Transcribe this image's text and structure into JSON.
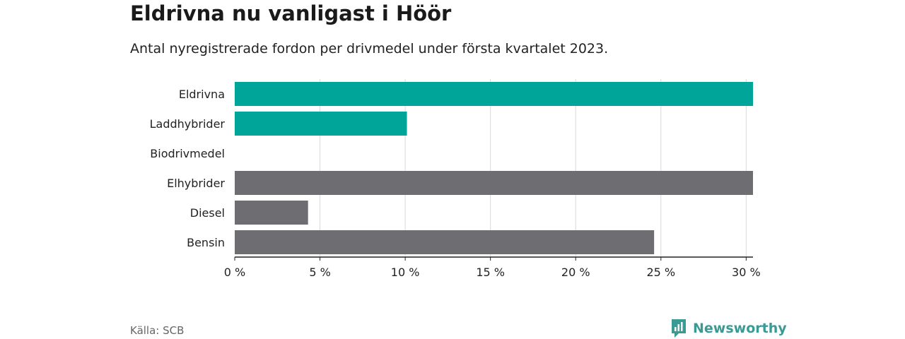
{
  "header": {
    "title": "Eldrivna nu vanligast i Höör",
    "subtitle": "Antal nyregistrerade fordon per drivmedel under första kvartalet 2023."
  },
  "footer": {
    "source": "Källa: SCB",
    "brand": "Newsworthy",
    "brand_icon": "bar-chart-logo-icon"
  },
  "colors": {
    "highlight": "#00a59a",
    "default": "#6e6d72",
    "grid": "#d9d9d9",
    "axis": "#222222",
    "brand": "#3a9b94"
  },
  "chart_data": {
    "type": "bar",
    "orientation": "horizontal",
    "categories": [
      "Eldrivna",
      "Laddhybrider",
      "Biodrivmedel",
      "Elhybrider",
      "Diesel",
      "Bensin"
    ],
    "values": [
      30.4,
      10.1,
      0,
      30.4,
      4.3,
      24.6
    ],
    "highlighted": [
      true,
      true,
      false,
      false,
      false,
      false
    ],
    "xlim": [
      0,
      30.4
    ],
    "xticks": [
      0,
      5,
      10,
      15,
      20,
      25,
      30
    ],
    "xtick_labels": [
      "0 %",
      "5 %",
      "10 %",
      "15 %",
      "20 %",
      "25 %",
      "30 %"
    ],
    "grid": true
  }
}
